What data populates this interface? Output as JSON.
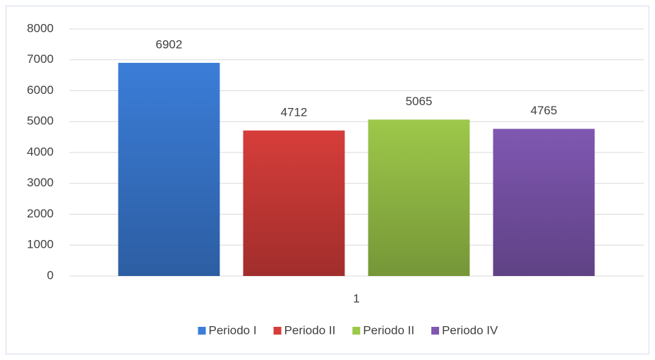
{
  "chart_data": {
    "type": "bar",
    "categories": [
      "1"
    ],
    "series": [
      {
        "name": "Periodo I",
        "color": "#3b7dd8",
        "values": [
          6902
        ]
      },
      {
        "name": "Periodo II",
        "color": "#d63d3a",
        "values": [
          4712
        ]
      },
      {
        "name": "Periodo II",
        "color": "#9dc84a",
        "values": [
          5065
        ]
      },
      {
        "name": "Periodo IV",
        "color": "#7f57b1",
        "values": [
          4765
        ]
      }
    ],
    "ylim": [
      0,
      8000
    ],
    "yticks": [
      0,
      1000,
      2000,
      3000,
      4000,
      5000,
      6000,
      7000,
      8000
    ],
    "grid": true,
    "legend": "bottom"
  }
}
